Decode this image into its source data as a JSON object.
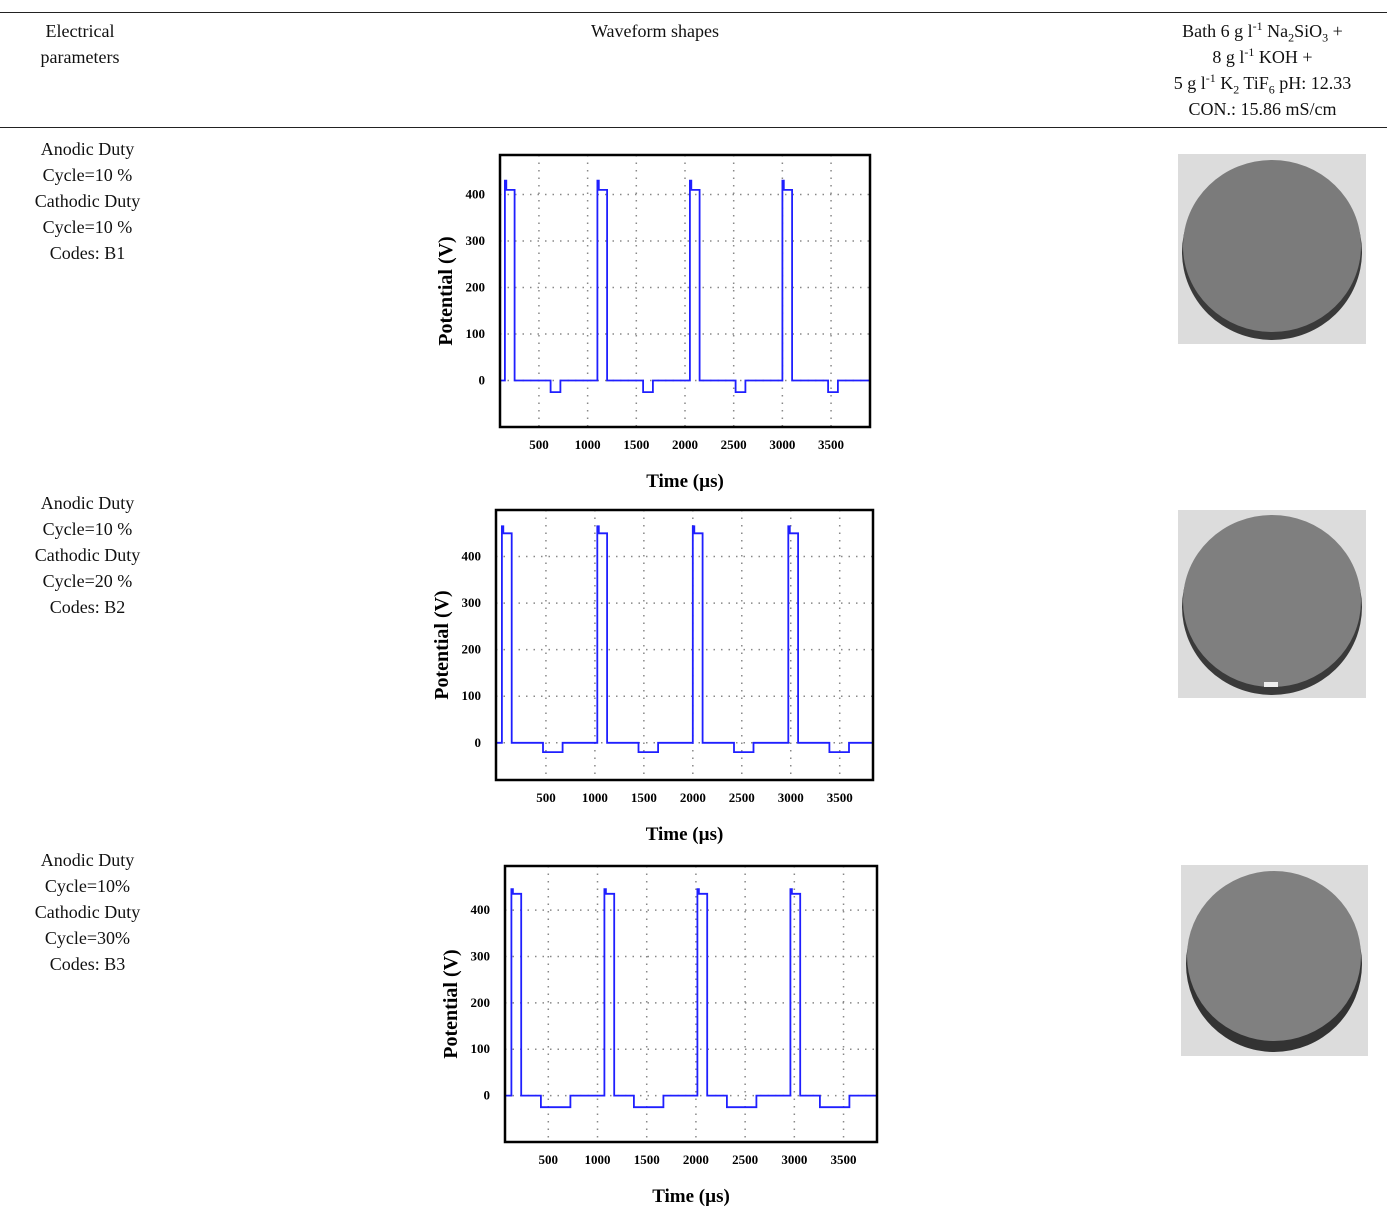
{
  "header": {
    "parameters": [
      "Electrical",
      "parameters"
    ],
    "waveform": "Waveform shapes",
    "bath": [
      [
        "Bath 6 g l",
        "-1",
        " Na",
        "2",
        "SiO",
        "3",
        " +"
      ],
      [
        "8 g l",
        "-1",
        " KOH +"
      ],
      [
        "5 g l",
        "-1",
        " K",
        "2",
        " TiF",
        "6",
        " pH: 12.33"
      ],
      [
        "CON.: 15.86 mS/cm"
      ]
    ]
  },
  "table": {
    "rows": [
      {
        "parameters": [
          "Anodic Duty",
          "Cycle=10 %",
          "Cathodic Duty",
          "Cycle=10 %",
          "Codes: B1"
        ],
        "waveform": {
          "type": "line",
          "xlabel": "Time (µs)",
          "ylabel": "Potential (V)",
          "xlim": [
            100,
            3900
          ],
          "ylim": [
            -100,
            485
          ],
          "xticks": [
            500,
            1000,
            1500,
            2000,
            2500,
            3000,
            3500
          ],
          "yticks": [
            0,
            100,
            200,
            300,
            400
          ],
          "grid": true,
          "series": [
            {
              "color": "#1f1fff",
              "x": [
                100,
                150,
                150,
                165,
                165,
                250,
                250,
                620,
                620,
                720,
                720,
                1100,
                1100,
                1115,
                1115,
                1200,
                1200,
                1570,
                1570,
                1670,
                1670,
                2050,
                2050,
                2065,
                2065,
                2150,
                2150,
                2520,
                2520,
                2620,
                2620,
                3000,
                3000,
                3015,
                3015,
                3100,
                3100,
                3470,
                3470,
                3570,
                3570,
                3900
              ],
              "values": [
                0,
                0,
                430,
                430,
                410,
                410,
                0,
                0,
                -25,
                -25,
                0,
                0,
                430,
                430,
                410,
                410,
                0,
                0,
                -25,
                -25,
                0,
                0,
                430,
                430,
                410,
                410,
                0,
                0,
                -25,
                -25,
                0,
                0,
                430,
                430,
                410,
                410,
                0,
                0,
                -25,
                -25,
                0,
                0
              ]
            }
          ]
        }
      },
      {
        "parameters": [
          "Anodic Duty",
          "Cycle=10 %",
          "Cathodic Duty",
          "Cycle=20 %",
          "Codes: B2"
        ],
        "waveform": {
          "type": "line",
          "xlabel": "Time (µs)",
          "ylabel": "Potential (V)",
          "xlim": [
            -10,
            3840
          ],
          "ylim": [
            -80,
            500
          ],
          "xticks": [
            500,
            1000,
            1500,
            2000,
            2500,
            3000,
            3500
          ],
          "yticks": [
            0,
            100,
            200,
            300,
            400
          ],
          "grid": true,
          "series": [
            {
              "color": "#1f1fff",
              "x": [
                -10,
                50,
                50,
                65,
                65,
                150,
                150,
                470,
                470,
                670,
                670,
                1025,
                1025,
                1040,
                1040,
                1125,
                1125,
                1445,
                1445,
                1645,
                1645,
                2000,
                2000,
                2015,
                2015,
                2100,
                2100,
                2420,
                2420,
                2620,
                2620,
                2975,
                2975,
                2990,
                2990,
                3075,
                3075,
                3395,
                3395,
                3595,
                3595,
                3840
              ],
              "values": [
                0,
                0,
                465,
                465,
                450,
                450,
                0,
                0,
                -20,
                -20,
                0,
                0,
                465,
                465,
                450,
                450,
                0,
                0,
                -20,
                -20,
                0,
                0,
                465,
                465,
                450,
                450,
                0,
                0,
                -20,
                -20,
                0,
                0,
                465,
                465,
                450,
                450,
                0,
                0,
                -20,
                -20,
                0,
                0
              ]
            }
          ]
        }
      },
      {
        "parameters": [
          "Anodic Duty",
          "Cycle=10%",
          "Cathodic Duty",
          "Cycle=30%",
          "Codes: B3"
        ],
        "waveform": {
          "type": "line",
          "xlabel": "Time (µs)",
          "ylabel": "Potential (V)",
          "xlim": [
            60,
            3840
          ],
          "ylim": [
            -100,
            495
          ],
          "xticks": [
            500,
            1000,
            1500,
            2000,
            2500,
            3000,
            3500
          ],
          "yticks": [
            0,
            100,
            200,
            300,
            400
          ],
          "grid": true,
          "series": [
            {
              "color": "#1f1fff",
              "x": [
                60,
                125,
                125,
                140,
                140,
                225,
                225,
                425,
                425,
                725,
                725,
                1070,
                1070,
                1085,
                1085,
                1170,
                1170,
                1370,
                1370,
                1670,
                1670,
                2015,
                2015,
                2030,
                2030,
                2115,
                2115,
                2315,
                2315,
                2615,
                2615,
                2960,
                2960,
                2975,
                2975,
                3060,
                3060,
                3260,
                3260,
                3560,
                3560,
                3840
              ],
              "values": [
                0,
                0,
                445,
                445,
                435,
                435,
                0,
                0,
                -25,
                -25,
                0,
                0,
                445,
                445,
                435,
                435,
                0,
                0,
                -25,
                -25,
                0,
                0,
                445,
                445,
                435,
                435,
                0,
                0,
                -25,
                -25,
                0,
                0,
                445,
                445,
                435,
                435,
                0,
                0,
                -25,
                -25,
                0,
                0
              ]
            }
          ]
        }
      }
    ]
  }
}
